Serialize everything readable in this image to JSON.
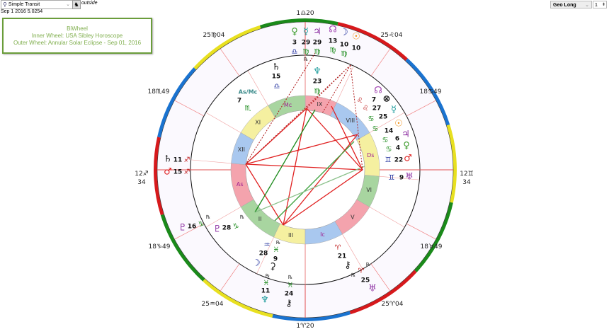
{
  "toolbar": {
    "chart_type_select": "Simple Transit",
    "outside_label": "outside",
    "datestamp": "Sep 1 2016 5.0254",
    "zodiac_select": "Geo Long",
    "spinner_value": "1"
  },
  "title_box": {
    "line1": "BiWheel",
    "line2": "Inner Wheel: USA Sibley Horoscope",
    "line3": "Outer Wheel: Annular Solar Eclipse - Sep 01, 2016"
  },
  "cusp_labels": [
    "1♎20",
    "25♌04",
    "18♋49",
    "12♊\n34",
    "18♉49",
    "25♈04",
    "1♈20",
    "25♒04",
    "18♑49",
    "12♐\n34",
    "18♏49",
    "25♍04"
  ],
  "element_colors": {
    "fire": "#d7191c",
    "earth": "#1a8a1a",
    "air": "#e8e020",
    "water": "#1a73d0"
  },
  "inner_houses": [
    {
      "label": "As",
      "color": "#f4a3ad"
    },
    {
      "label": "II",
      "color": "#a8d5a0"
    },
    {
      "label": "III",
      "color": "#f5f0a0"
    },
    {
      "label": "Ic",
      "color": "#a9c8ef"
    },
    {
      "label": "V",
      "color": "#f4a3ad"
    },
    {
      "label": "VI",
      "color": "#a8d5a0"
    },
    {
      "label": "Ds",
      "color": "#f5f0a0"
    },
    {
      "label": "VIII",
      "color": "#a9c8ef"
    },
    {
      "label": "IX",
      "color": "#f4a3ad"
    },
    {
      "label": "Mc",
      "color": "#a8d5a0"
    },
    {
      "label": "XI",
      "color": "#f5f0a0"
    },
    {
      "label": "XII",
      "color": "#a9c8ef"
    }
  ],
  "outer_planets": [
    {
      "name": "Venus",
      "glyph": "♀",
      "degree": "3",
      "sign": "♎",
      "retro": "",
      "color": "#3a9a2a"
    },
    {
      "name": "Mercury",
      "glyph": "☿",
      "degree": "29",
      "sign": "♍",
      "retro": "℞",
      "color": "#1a9a9a"
    },
    {
      "name": "Jupiter",
      "glyph": "♃",
      "degree": "29",
      "sign": "♍",
      "retro": "",
      "color": "#8a2aa0"
    },
    {
      "name": "North Node",
      "glyph": "☊",
      "degree": "13",
      "sign": "♍",
      "retro": "",
      "color": "#a040b0"
    },
    {
      "name": "Moon",
      "glyph": "☽",
      "degree": "10",
      "sign": "♍",
      "retro": "",
      "color": "#1a2a9a"
    },
    {
      "name": "Sun",
      "glyph": "☉",
      "degree": "10",
      "sign": "",
      "retro": "",
      "color": "#f08c10"
    },
    {
      "name": "Saturn",
      "glyph": "♄",
      "degree": "11",
      "sign": "♐",
      "retro": "",
      "color": "#111"
    },
    {
      "name": "Mars",
      "glyph": "♂",
      "degree": "15",
      "sign": "♐",
      "retro": "",
      "color": "#e02020"
    },
    {
      "name": "Pluto",
      "glyph": "♇",
      "degree": "16",
      "sign": "♑",
      "retro": "℞",
      "color": "#8a2aa0"
    },
    {
      "name": "Uranus",
      "glyph": "♅",
      "degree": "25",
      "sign": "♈",
      "retro": "℞",
      "color": "#8a2aa0"
    },
    {
      "name": "Neptune",
      "glyph": "♆",
      "degree": "11",
      "sign": "♓",
      "retro": "℞",
      "color": "#1a9a9a"
    },
    {
      "name": "Chiron",
      "glyph": "⚷",
      "degree": "24",
      "sign": "♓",
      "retro": "℞",
      "color": "#111"
    }
  ],
  "inner_planets": [
    {
      "name": "Saturn",
      "glyph": "♄",
      "degree": "15",
      "sign": "♎",
      "retro": "",
      "color": "#111"
    },
    {
      "name": "Neptune",
      "glyph": "♆",
      "degree": "23",
      "sign": "♍",
      "retro": "",
      "color": "#1a9a9a"
    },
    {
      "name": "As/Mc",
      "glyph": "As/Mc",
      "degree": "7",
      "sign": "♏",
      "retro": "",
      "color": "#3a8a8a"
    },
    {
      "name": "North Node",
      "glyph": "☊",
      "degree": "7",
      "sign": "♌",
      "retro": "",
      "color": "#a040b0"
    },
    {
      "name": "Part of Fortune",
      "glyph": "⊗",
      "degree": "27",
      "sign": "♌",
      "retro": "",
      "color": "#111"
    },
    {
      "name": "Mercury",
      "glyph": "☿",
      "degree": "25",
      "sign": "♋",
      "retro": "",
      "color": "#1a9a9a"
    },
    {
      "name": "Sun",
      "glyph": "☉",
      "degree": "14",
      "sign": "♋",
      "retro": "",
      "color": "#f08c10"
    },
    {
      "name": "Jupiter",
      "glyph": "♃",
      "degree": "6",
      "sign": "♋",
      "retro": "",
      "color": "#8a2aa0"
    },
    {
      "name": "Venus",
      "glyph": "♀",
      "degree": "4",
      "sign": "♋",
      "retro": "",
      "color": "#3a9a2a"
    },
    {
      "name": "Mars",
      "glyph": "♂",
      "degree": "22",
      "sign": "♊",
      "retro": "",
      "color": "#e02020"
    },
    {
      "name": "Uranus",
      "glyph": "♅",
      "degree": "9",
      "sign": "♊",
      "retro": "",
      "color": "#8a2aa0"
    },
    {
      "name": "Pluto",
      "glyph": "♇",
      "degree": "28",
      "sign": "♑",
      "retro": "℞",
      "color": "#8a2aa0"
    },
    {
      "name": "Moon",
      "glyph": "☽",
      "degree": "28",
      "sign": "♒",
      "retro": "",
      "color": "#1a2a9a"
    },
    {
      "name": "Ceres",
      "glyph": "⚳",
      "degree": "9",
      "sign": "♓",
      "retro": "℞",
      "color": "#111"
    },
    {
      "name": "Chiron",
      "glyph": "⚷",
      "degree": "21",
      "sign": "♈",
      "retro": "℞",
      "color": "#111"
    }
  ]
}
